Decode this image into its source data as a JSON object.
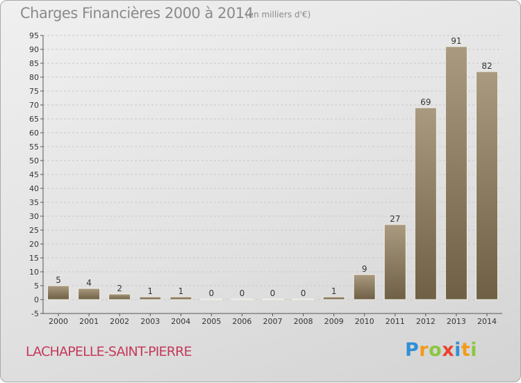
{
  "header": {
    "title": "Charges Financières 2000 à 2014",
    "subtitle": "(en milliers d'€)"
  },
  "footer": {
    "commune": "LACHAPELLE-SAINT-PIERRE",
    "logo_letters": [
      "P",
      "r",
      "o",
      "x",
      "i",
      "t",
      "i"
    ]
  },
  "colors": {
    "bar_top": "#a99a80",
    "bar_bottom": "#6e5f45",
    "grid": "#c8c8c8",
    "axis_text": "#333333",
    "commune_text": "#c33a5a"
  },
  "chart_data": {
    "type": "bar",
    "title": "Charges Financières 2000 à 2014",
    "subtitle": "(en milliers d'€)",
    "xlabel": "",
    "ylabel": "",
    "categories": [
      "2000",
      "2001",
      "2002",
      "2003",
      "2004",
      "2005",
      "2006",
      "2007",
      "2008",
      "2009",
      "2010",
      "2011",
      "2012",
      "2013",
      "2014"
    ],
    "values": [
      5,
      4,
      2,
      1,
      1,
      0,
      0,
      0,
      0,
      1,
      9,
      27,
      69,
      91,
      82
    ],
    "ylim": [
      -5,
      95
    ],
    "ytick_step": 5,
    "grid": "horizontal dashed",
    "legend": "none",
    "data_labels": true
  }
}
